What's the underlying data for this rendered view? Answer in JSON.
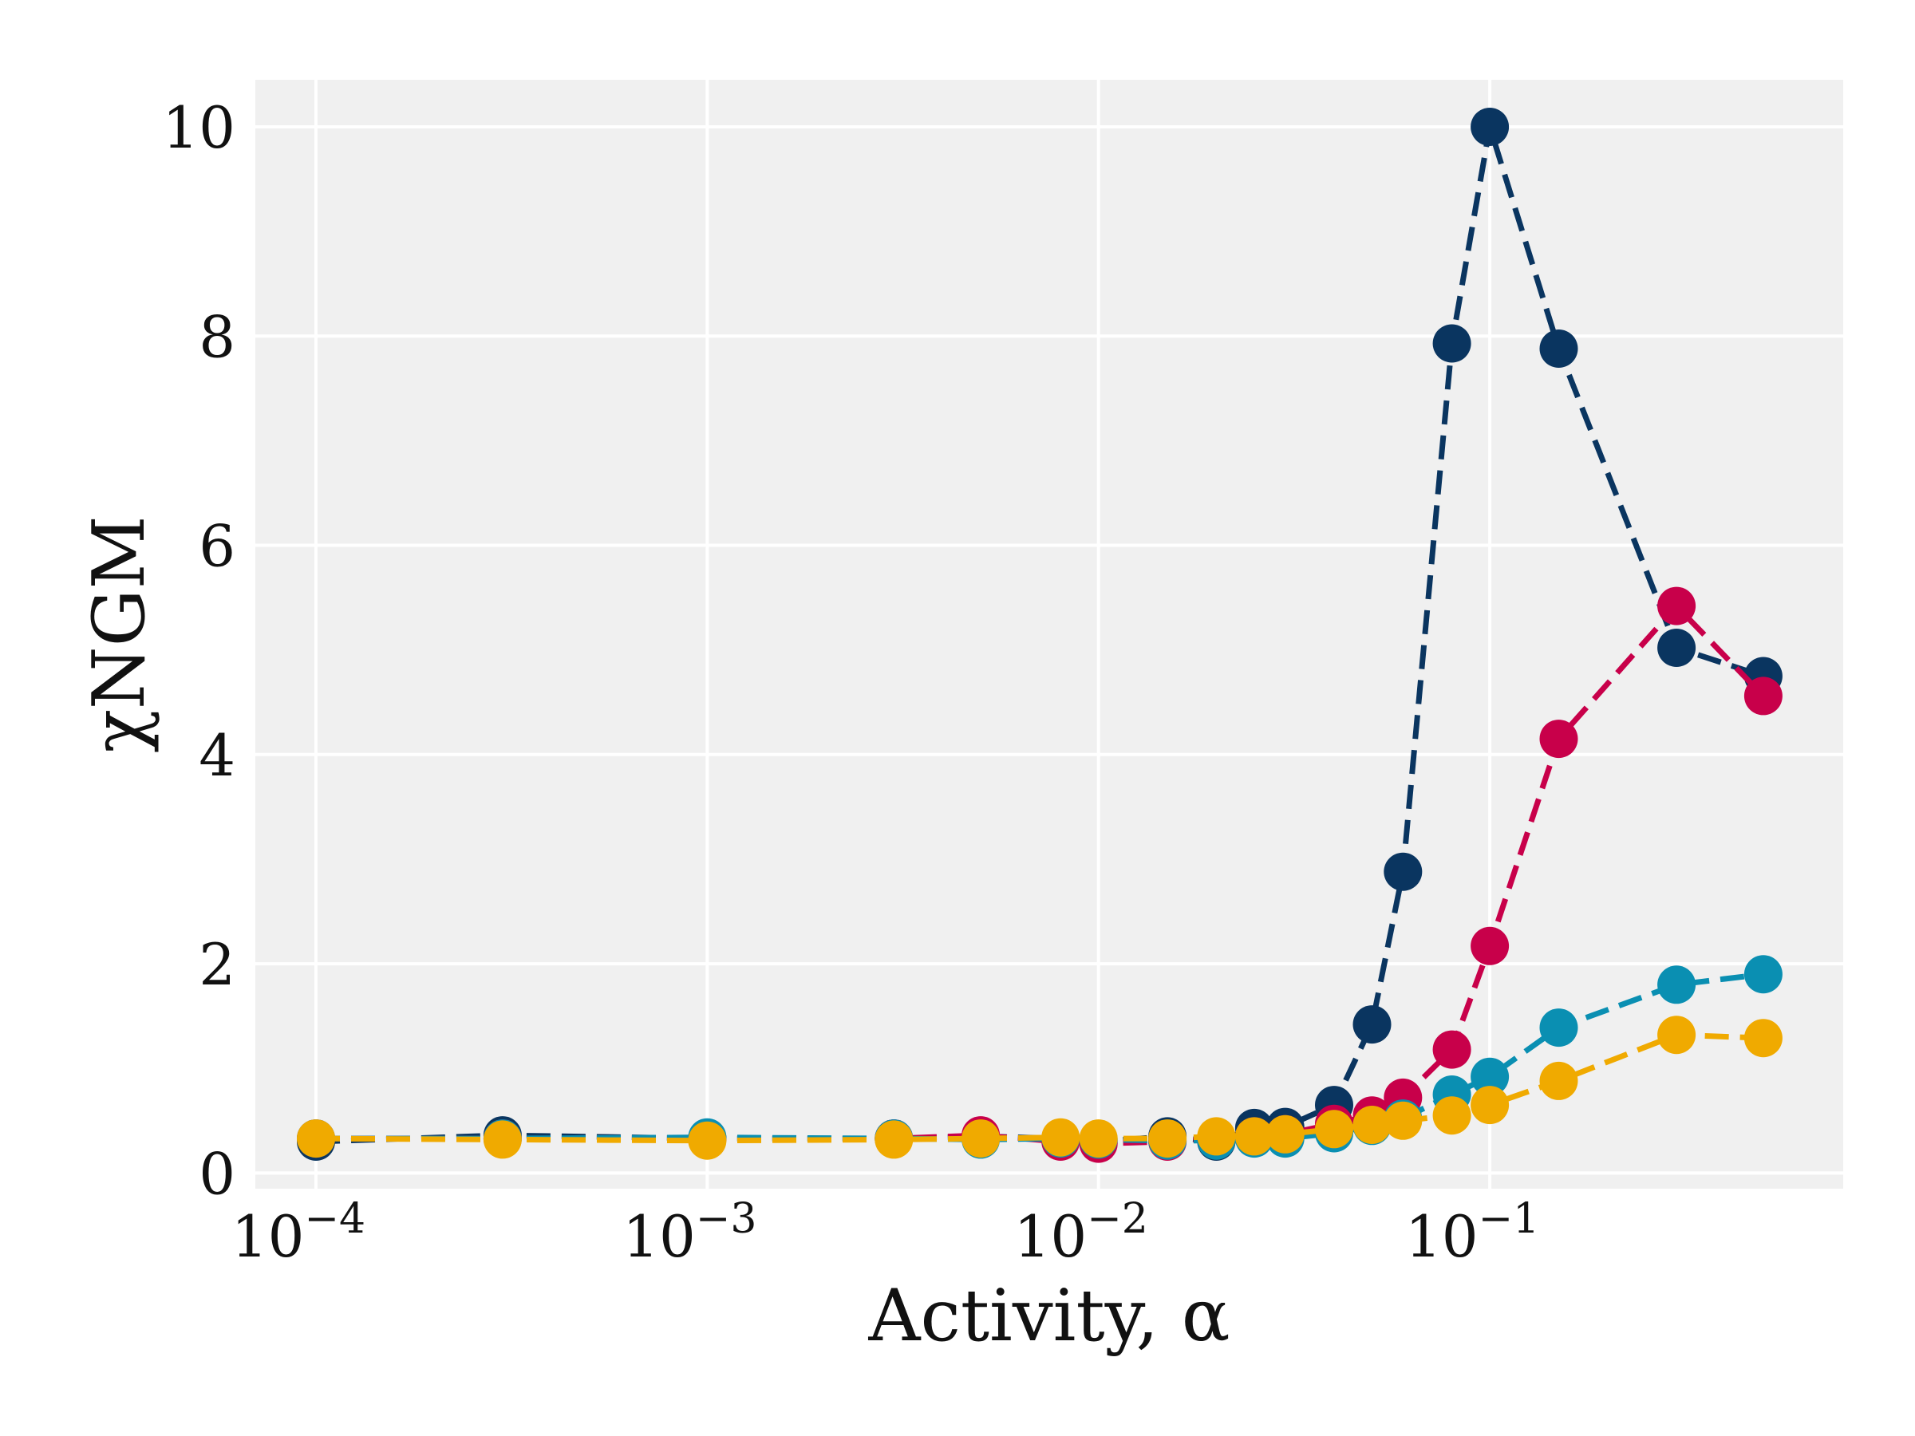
{
  "chart_data": {
    "type": "line",
    "xlabel": "Activity, α",
    "ylabel": "χNGM",
    "xscale": "log",
    "xlim": [
      7e-05,
      0.8
    ],
    "ylim": [
      -0.15,
      10.45
    ],
    "grid": true,
    "legend": "none",
    "x_ticks": [
      {
        "value": 0.0001,
        "base": "10",
        "exp": "−4"
      },
      {
        "value": 0.001,
        "base": "10",
        "exp": "−3"
      },
      {
        "value": 0.01,
        "base": "10",
        "exp": "−2"
      },
      {
        "value": 0.1,
        "base": "10",
        "exp": "−1"
      }
    ],
    "y_ticks": [
      {
        "value": 0,
        "label": "0"
      },
      {
        "value": 2,
        "label": "2"
      },
      {
        "value": 4,
        "label": "4"
      },
      {
        "value": 6,
        "label": "6"
      },
      {
        "value": 8,
        "label": "8"
      },
      {
        "value": 10,
        "label": "10"
      }
    ],
    "series": [
      {
        "color": "#0a3560",
        "x": [
          0.0001,
          0.0003,
          0.001,
          0.003,
          0.005,
          0.008,
          0.01,
          0.015,
          0.02,
          0.025,
          0.03,
          0.04,
          0.05,
          0.06,
          0.08,
          0.1,
          0.15,
          0.3,
          0.5
        ],
        "y": [
          0.3,
          0.36,
          0.33,
          0.33,
          0.35,
          0.33,
          0.3,
          0.35,
          0.3,
          0.43,
          0.44,
          0.65,
          1.42,
          2.88,
          7.93,
          10.0,
          7.88,
          5.02,
          4.75
        ]
      },
      {
        "color": "#c8004a",
        "x": [
          0.0001,
          0.0003,
          0.001,
          0.003,
          0.005,
          0.008,
          0.01,
          0.015,
          0.02,
          0.025,
          0.03,
          0.04,
          0.05,
          0.06,
          0.08,
          0.1,
          0.15,
          0.3,
          0.5
        ],
        "y": [
          0.33,
          0.33,
          0.33,
          0.33,
          0.36,
          0.3,
          0.28,
          0.3,
          0.33,
          0.35,
          0.37,
          0.47,
          0.55,
          0.72,
          1.18,
          2.17,
          4.15,
          5.42,
          4.56
        ]
      },
      {
        "color": "#0a8fb2",
        "x": [
          0.0001,
          0.0003,
          0.001,
          0.003,
          0.005,
          0.008,
          0.01,
          0.015,
          0.02,
          0.025,
          0.03,
          0.04,
          0.05,
          0.06,
          0.08,
          0.1,
          0.15,
          0.3,
          0.5
        ],
        "y": [
          0.33,
          0.33,
          0.34,
          0.33,
          0.32,
          0.33,
          0.32,
          0.31,
          0.31,
          0.33,
          0.33,
          0.38,
          0.45,
          0.52,
          0.75,
          0.92,
          1.39,
          1.8,
          1.9
        ]
      },
      {
        "color": "#f0aa00",
        "x": [
          0.0001,
          0.0003,
          0.001,
          0.003,
          0.005,
          0.008,
          0.01,
          0.015,
          0.02,
          0.025,
          0.03,
          0.04,
          0.05,
          0.06,
          0.08,
          0.1,
          0.15,
          0.3,
          0.5
        ],
        "y": [
          0.33,
          0.32,
          0.31,
          0.32,
          0.33,
          0.34,
          0.33,
          0.33,
          0.35,
          0.35,
          0.37,
          0.42,
          0.46,
          0.5,
          0.55,
          0.65,
          0.88,
          1.32,
          1.29
        ]
      }
    ]
  }
}
